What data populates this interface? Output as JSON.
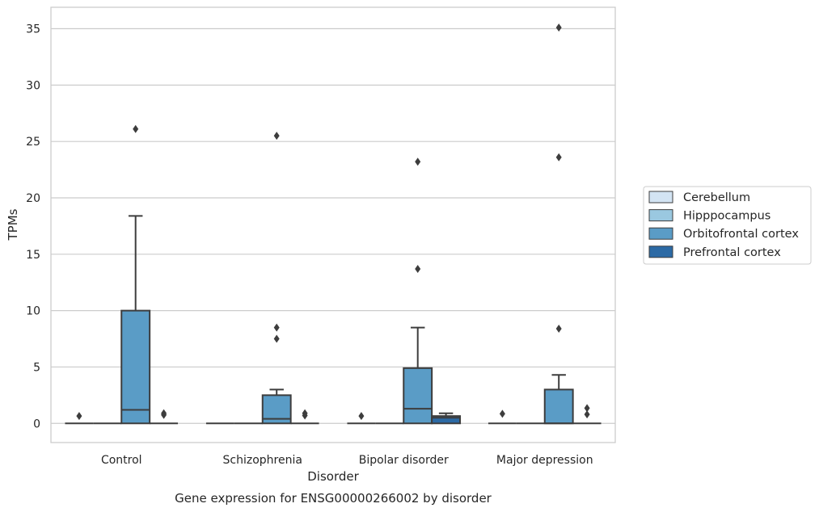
{
  "chart_data": {
    "type": "box",
    "caption": "Gene expression for ENSG00000266002 by disorder",
    "xlabel": "Disorder",
    "ylabel": "TPMs",
    "ylim": [
      -1.7,
      36.9
    ],
    "yticks": [
      0,
      5,
      10,
      15,
      20,
      25,
      30,
      35
    ],
    "ytick_labels": [
      "0",
      "5",
      "10",
      "15",
      "20",
      "25",
      "30",
      "35"
    ],
    "grid": true,
    "legend_position": "right",
    "categories": [
      "Control",
      "Schizophrenia",
      "Bipolar disorder",
      "Major depression"
    ],
    "series": [
      {
        "name": "Cerebellum",
        "color": "#d3e4f3",
        "boxes": [
          {
            "q1": 0,
            "median": 0,
            "q3": 0,
            "whisker_low": 0,
            "whisker_high": 0,
            "outliers": [
              0.65
            ]
          },
          {
            "q1": 0,
            "median": 0,
            "q3": 0,
            "whisker_low": 0,
            "whisker_high": 0,
            "outliers": []
          },
          {
            "q1": 0,
            "median": 0,
            "q3": 0,
            "whisker_low": 0,
            "whisker_high": 0,
            "outliers": [
              0.65
            ]
          },
          {
            "q1": 0,
            "median": 0,
            "q3": 0,
            "whisker_low": 0,
            "whisker_high": 0,
            "outliers": [
              0.85
            ]
          }
        ]
      },
      {
        "name": "Hipppocampus",
        "color": "#9ac8e0",
        "boxes": [
          {
            "q1": 0,
            "median": 0,
            "q3": 0,
            "whisker_low": 0,
            "whisker_high": 0,
            "outliers": []
          },
          {
            "q1": 0,
            "median": 0,
            "q3": 0,
            "whisker_low": 0,
            "whisker_high": 0,
            "outliers": []
          },
          {
            "q1": 0,
            "median": 0,
            "q3": 0,
            "whisker_low": 0,
            "whisker_high": 0,
            "outliers": []
          },
          {
            "q1": 0,
            "median": 0,
            "q3": 0,
            "whisker_low": 0,
            "whisker_high": 0,
            "outliers": []
          }
        ]
      },
      {
        "name": "Orbitofrontal cortex",
        "color": "#5a9cc6",
        "boxes": [
          {
            "q1": 0,
            "median": 1.2,
            "q3": 10.0,
            "whisker_low": 0,
            "whisker_high": 18.4,
            "outliers": [
              26.1
            ]
          },
          {
            "q1": 0,
            "median": 0.4,
            "q3": 2.5,
            "whisker_low": 0,
            "whisker_high": 3.0,
            "outliers": [
              7.5,
              8.5,
              25.5
            ]
          },
          {
            "q1": 0,
            "median": 1.3,
            "q3": 4.9,
            "whisker_low": 0,
            "whisker_high": 8.5,
            "outliers": [
              13.7,
              23.2
            ]
          },
          {
            "q1": 0,
            "median": 0,
            "q3": 3.0,
            "whisker_low": 0,
            "whisker_high": 4.3,
            "outliers": [
              8.4,
              23.6,
              35.1
            ]
          }
        ]
      },
      {
        "name": "Prefrontal cortex",
        "color": "#2c6aa5",
        "boxes": [
          {
            "q1": 0,
            "median": 0,
            "q3": 0,
            "whisker_low": 0,
            "whisker_high": 0,
            "outliers": [
              0.75,
              0.9
            ]
          },
          {
            "q1": 0,
            "median": 0,
            "q3": 0,
            "whisker_low": 0,
            "whisker_high": 0,
            "outliers": [
              0.7,
              0.9
            ]
          },
          {
            "q1": 0,
            "median": 0.5,
            "q3": 0.65,
            "whisker_low": 0,
            "whisker_high": 0.9,
            "outliers": []
          },
          {
            "q1": 0,
            "median": 0,
            "q3": 0,
            "whisker_low": 0,
            "whisker_high": 0,
            "outliers": [
              0.8,
              1.35
            ]
          }
        ]
      }
    ]
  }
}
